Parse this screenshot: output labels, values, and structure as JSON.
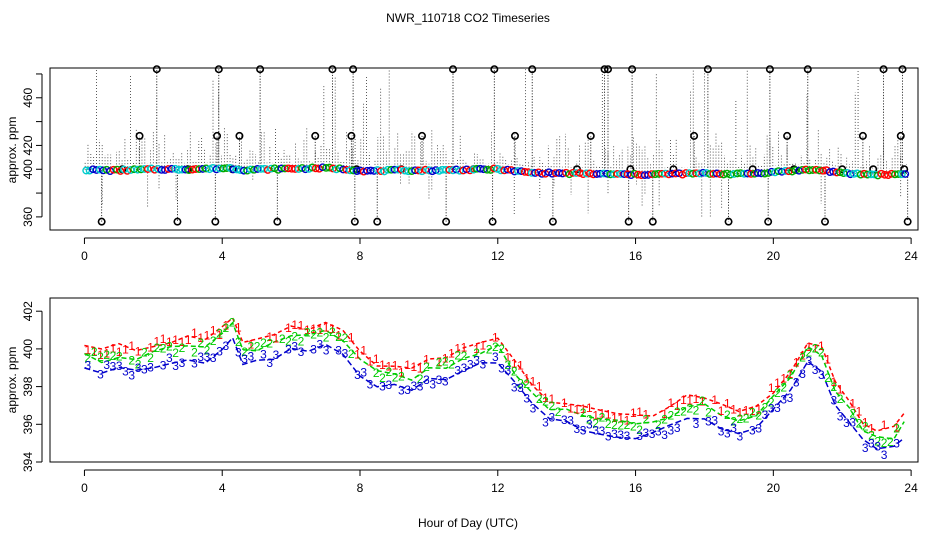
{
  "title": "NWR_110718  CO2 Timeseries",
  "xlabel": "Hour of Day (UTC)",
  "chart_data": [
    {
      "type": "scatter",
      "panel": "top",
      "ylabel": "approx. ppm",
      "xlim": [
        -1,
        24.2
      ],
      "ylim": [
        349,
        485
      ],
      "xticks": [
        0,
        4,
        8,
        12,
        16,
        20,
        24
      ],
      "yticks": [
        360,
        380,
        400,
        420,
        440,
        460,
        480
      ],
      "ytick_labels": [
        "360",
        "400",
        "420",
        "460"
      ],
      "baseline_knots": {
        "x": [
          0,
          1,
          2,
          3,
          3.8,
          4.2,
          4.6,
          6,
          7,
          7.6,
          8.2,
          9,
          10,
          11,
          12,
          12.5,
          13,
          14,
          15,
          16,
          17,
          18,
          19,
          19.5,
          20.2,
          21,
          21.5,
          22,
          23,
          23.9
        ],
        "y": [
          399.5,
          399,
          400,
          400,
          400.5,
          401,
          399.5,
          400.5,
          401,
          400,
          398.5,
          399,
          399,
          399.5,
          400,
          398.5,
          397,
          396.5,
          396,
          395.5,
          396,
          396.5,
          396,
          396.5,
          398,
          399.5,
          399,
          396.5,
          395.5,
          396
        ]
      },
      "outlier_points": {
        "x": [
          0.5,
          1.1,
          1.6,
          2.1,
          2.7,
          3.0,
          3.8,
          3.85,
          3.9,
          4.3,
          4.5,
          5.1,
          5.6,
          6.7,
          7.2,
          7.75,
          7.8,
          7.85,
          7.9,
          8.5,
          9.2,
          9.8,
          10.5,
          10.7,
          11.3,
          11.85,
          11.9,
          12.5,
          13.0,
          13.6,
          14.3,
          14.7,
          15.1,
          15.2,
          15.8,
          15.85,
          15.9,
          16.5,
          17.1,
          17.7,
          18.1,
          18.7,
          19.4,
          19.85,
          19.9,
          20.4,
          20.6,
          21.0,
          21.5,
          22.0,
          22.6,
          22.9,
          23.2,
          23.7,
          23.75,
          23.8,
          23.9
        ],
        "y": [
          356,
          400,
          428,
          484,
          356,
          400,
          356,
          428,
          484,
          400,
          428,
          484,
          356,
          428,
          484,
          428,
          484,
          356,
          400,
          356,
          400,
          428,
          356,
          484,
          400,
          356,
          484,
          428,
          484,
          356,
          400,
          428,
          484,
          484,
          356,
          400,
          484,
          356,
          400,
          428,
          484,
          356,
          400,
          356,
          484,
          428,
          400,
          484,
          356,
          400,
          428,
          400,
          484,
          428,
          484,
          400,
          356
        ]
      }
    },
    {
      "type": "line",
      "panel": "bottom",
      "ylabel": "approx. ppm",
      "xlim": [
        -1,
        24.2
      ],
      "ylim": [
        394,
        402.7
      ],
      "xticks": [
        0,
        4,
        8,
        12,
        16,
        20,
        24
      ],
      "yticks": [
        394,
        396,
        398,
        400,
        402
      ],
      "series": [
        {
          "name": "1",
          "color": "#ff0000",
          "offset": 0.6
        },
        {
          "name": "2",
          "color": "#00cc00",
          "offset": 0.15
        },
        {
          "name": "3",
          "color": "#0000cc",
          "offset": -0.5
        }
      ],
      "x": [
        0,
        0.5,
        1,
        1.5,
        2,
        2.5,
        3,
        3.5,
        4,
        4.3,
        4.6,
        5,
        5.5,
        6,
        6.5,
        7,
        7.5,
        8,
        8.5,
        9,
        9.5,
        10,
        10.5,
        11,
        11.5,
        12,
        12.5,
        13,
        13.5,
        14,
        14.5,
        15,
        15.5,
        16,
        16.5,
        17,
        17.5,
        18,
        18.5,
        19,
        19.5,
        20,
        20.5,
        21,
        21.4,
        21.8,
        22.2,
        22.6,
        23,
        23.5,
        23.8
      ],
      "base": [
        399.5,
        399.3,
        399.5,
        399.2,
        399.6,
        399.8,
        400,
        399.9,
        400.5,
        401.2,
        399.8,
        399.8,
        400.1,
        400.5,
        400.5,
        400.7,
        400.3,
        399.2,
        398.6,
        398.5,
        398.3,
        398.8,
        399,
        399.5,
        399.7,
        399.9,
        398.6,
        397.5,
        396.7,
        396.6,
        396.3,
        396,
        395.9,
        395.8,
        395.9,
        396.3,
        396.8,
        396.8,
        396.3,
        396.1,
        396.3,
        397.2,
        398.2,
        399.8,
        399.4,
        397.5,
        396.6,
        395.6,
        395.1,
        395.2,
        395.9
      ]
    }
  ]
}
